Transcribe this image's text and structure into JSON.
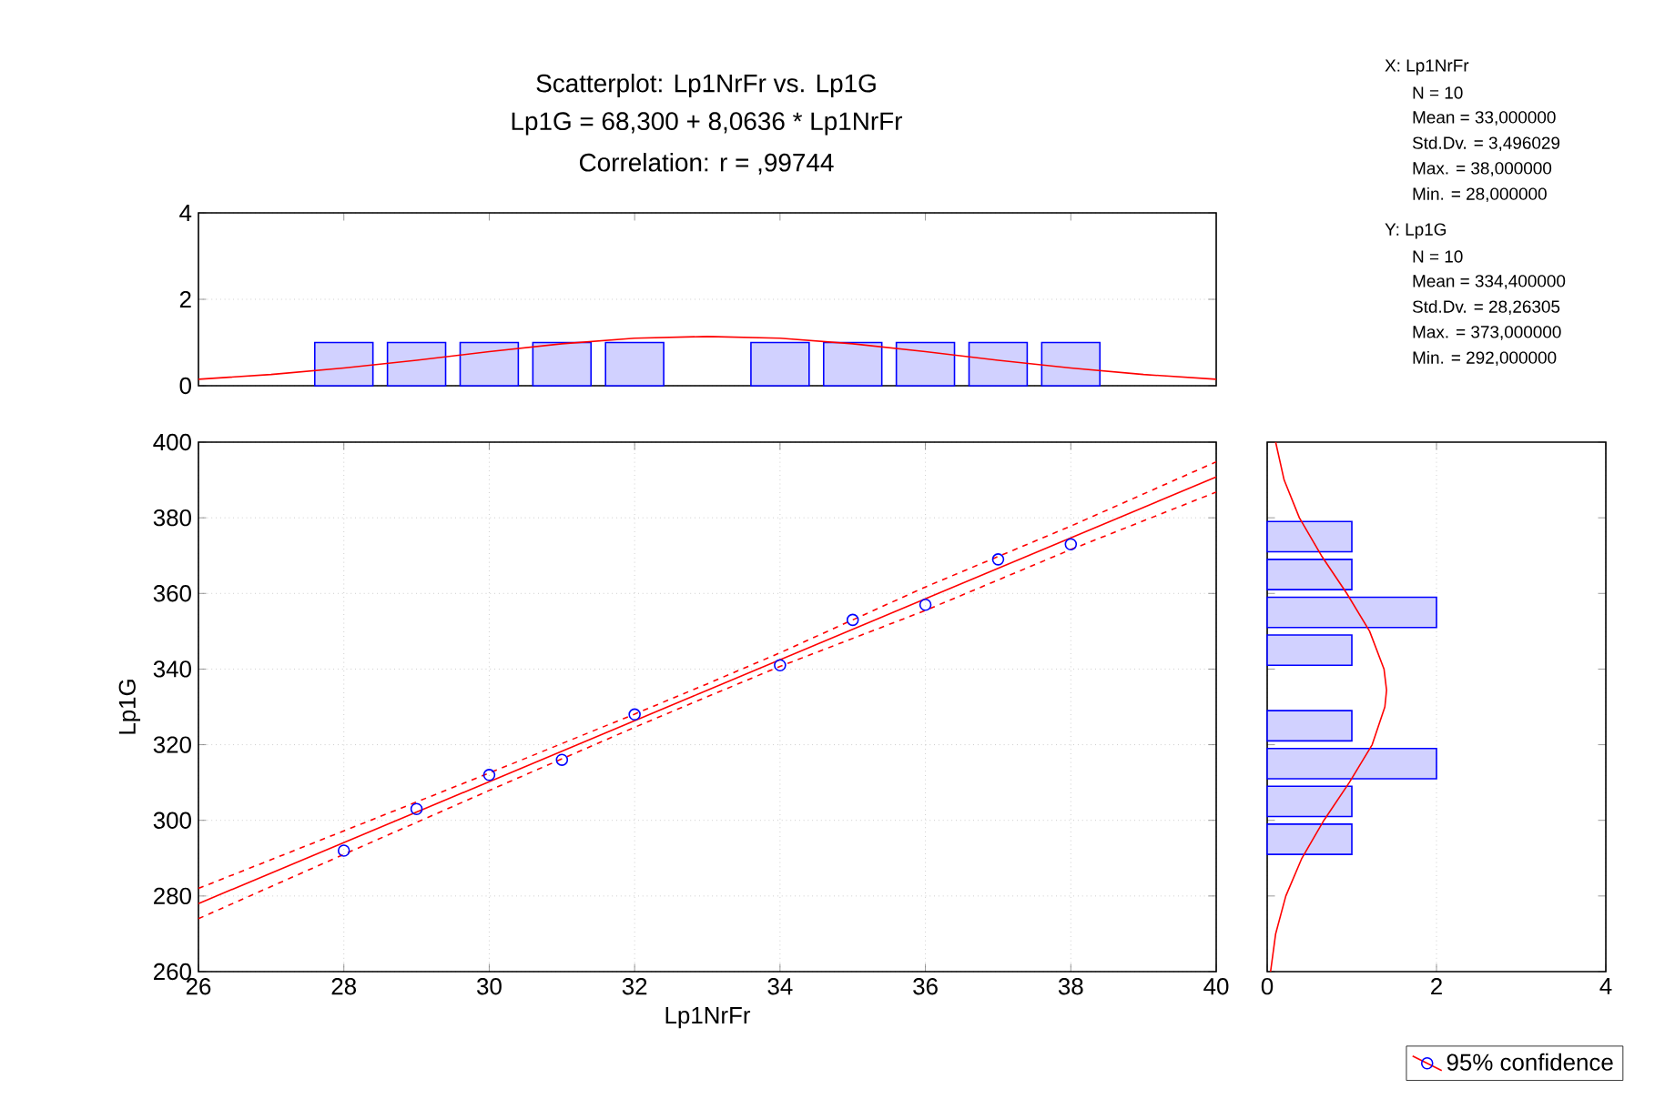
{
  "chart_data": [
    {
      "type": "histogram",
      "title": "Scatterplot: Lp1NrFr  vs. Lp1G",
      "subtitle": "Lp1G = 68,300 + 8,0636 * Lp1NrFr",
      "annotations": [
        "Correlation: r = ,99744"
      ],
      "xlim": [
        26,
        40
      ],
      "ylim": [
        0,
        4
      ],
      "xticks": [
        28,
        30,
        32,
        34,
        36,
        38
      ],
      "yticks": [
        0,
        2,
        4
      ],
      "grid": "y",
      "tick_labels": "y",
      "series": [
        {
          "color": "#0000ff",
          "bins": [
            27.5,
            28.5,
            29.5,
            30.5,
            31.5,
            32.5,
            33.5,
            34.5,
            35.5,
            36.5,
            37.5,
            38.5
          ],
          "values": [
            1,
            1,
            1,
            1,
            1,
            0,
            1,
            1,
            1,
            1,
            1
          ]
        },
        {
          "type": "line",
          "color": "#ff0000",
          "x": [
            26,
            27,
            28,
            29,
            30,
            31,
            32,
            33,
            34,
            35,
            36,
            37,
            38,
            39,
            40
          ],
          "values": [
            0.15,
            0.26,
            0.41,
            0.59,
            0.79,
            0.97,
            1.1,
            1.14,
            1.1,
            0.97,
            0.79,
            0.59,
            0.41,
            0.26,
            0.15
          ]
        }
      ]
    },
    {
      "type": "scatter",
      "xlabel": "Lp1NrFr",
      "ylabel": "Lp1G",
      "xlim": [
        26,
        40
      ],
      "ylim": [
        260,
        400
      ],
      "xticks": [
        26,
        28,
        30,
        32,
        34,
        36,
        38,
        40
      ],
      "yticks": [
        260,
        280,
        300,
        320,
        340,
        360,
        380,
        400
      ],
      "grid": true,
      "legend": "bottom right",
      "series": [
        {
          "name": "95% confidence",
          "color": "#0000ff",
          "marker": "circle",
          "x": [
            28,
            29,
            30,
            31,
            32,
            34,
            35,
            36,
            37,
            38
          ],
          "values": [
            292,
            303,
            312,
            316,
            328,
            341,
            353,
            357,
            369,
            373
          ]
        },
        {
          "type": "line",
          "color": "#ff0000",
          "x": [
            26,
            40
          ],
          "values": [
            278.0,
            390.8
          ]
        },
        {
          "type": "line",
          "color": "#ff0000",
          "line_style": "dashed",
          "x": [
            26,
            28,
            30,
            32,
            33,
            34,
            36,
            38,
            40
          ],
          "values": [
            282.0,
            297.2,
            312.5,
            328.1,
            336.1,
            344.3,
            361.7,
            377.8,
            394.8
          ]
        },
        {
          "type": "line",
          "color": "#ff0000",
          "line_style": "dashed",
          "x": [
            26,
            28,
            30,
            32,
            33,
            34,
            36,
            38,
            40
          ],
          "values": [
            274.0,
            291.0,
            307.9,
            324.6,
            332.7,
            340.7,
            355.5,
            371.6,
            386.8
          ]
        }
      ]
    },
    {
      "type": "histogram",
      "orientation": "horizontal",
      "xlim": [
        0,
        4
      ],
      "xticks": [
        0,
        2,
        4
      ],
      "ylim": [
        260,
        400
      ],
      "yticks": [
        260,
        280,
        300,
        320,
        340,
        360,
        380,
        400
      ],
      "grid": "x",
      "tick_labels": "x",
      "annotations": [
        "X:  Lp1NrFr",
        "N = 10",
        "Mean = 33,000000",
        "Std.Dv. = 3,496029",
        "Max. = 38,000000",
        "Min. = 28,000000",
        "Y:  Lp1G",
        "N = 10",
        "Mean = 334,400000",
        "Std.Dv. = 28,26305",
        "Max. = 373,000000",
        "Min. = 292,000000"
      ],
      "series": [
        {
          "color": "#0000ff",
          "bins": [
            290,
            300,
            310,
            320,
            330,
            340,
            350,
            360,
            370,
            380
          ],
          "values": [
            1,
            1,
            2,
            1,
            0,
            1,
            2,
            1,
            1
          ]
        },
        {
          "type": "line",
          "color": "#ff0000",
          "x": [
            260,
            270,
            280,
            290,
            300,
            310,
            320,
            330,
            334.4,
            340,
            350,
            360,
            370,
            380,
            390,
            400
          ],
          "values": [
            0.04,
            0.1,
            0.22,
            0.41,
            0.67,
            0.97,
            1.24,
            1.39,
            1.41,
            1.38,
            1.21,
            0.94,
            0.64,
            0.38,
            0.2,
            0.1
          ]
        }
      ]
    }
  ]
}
